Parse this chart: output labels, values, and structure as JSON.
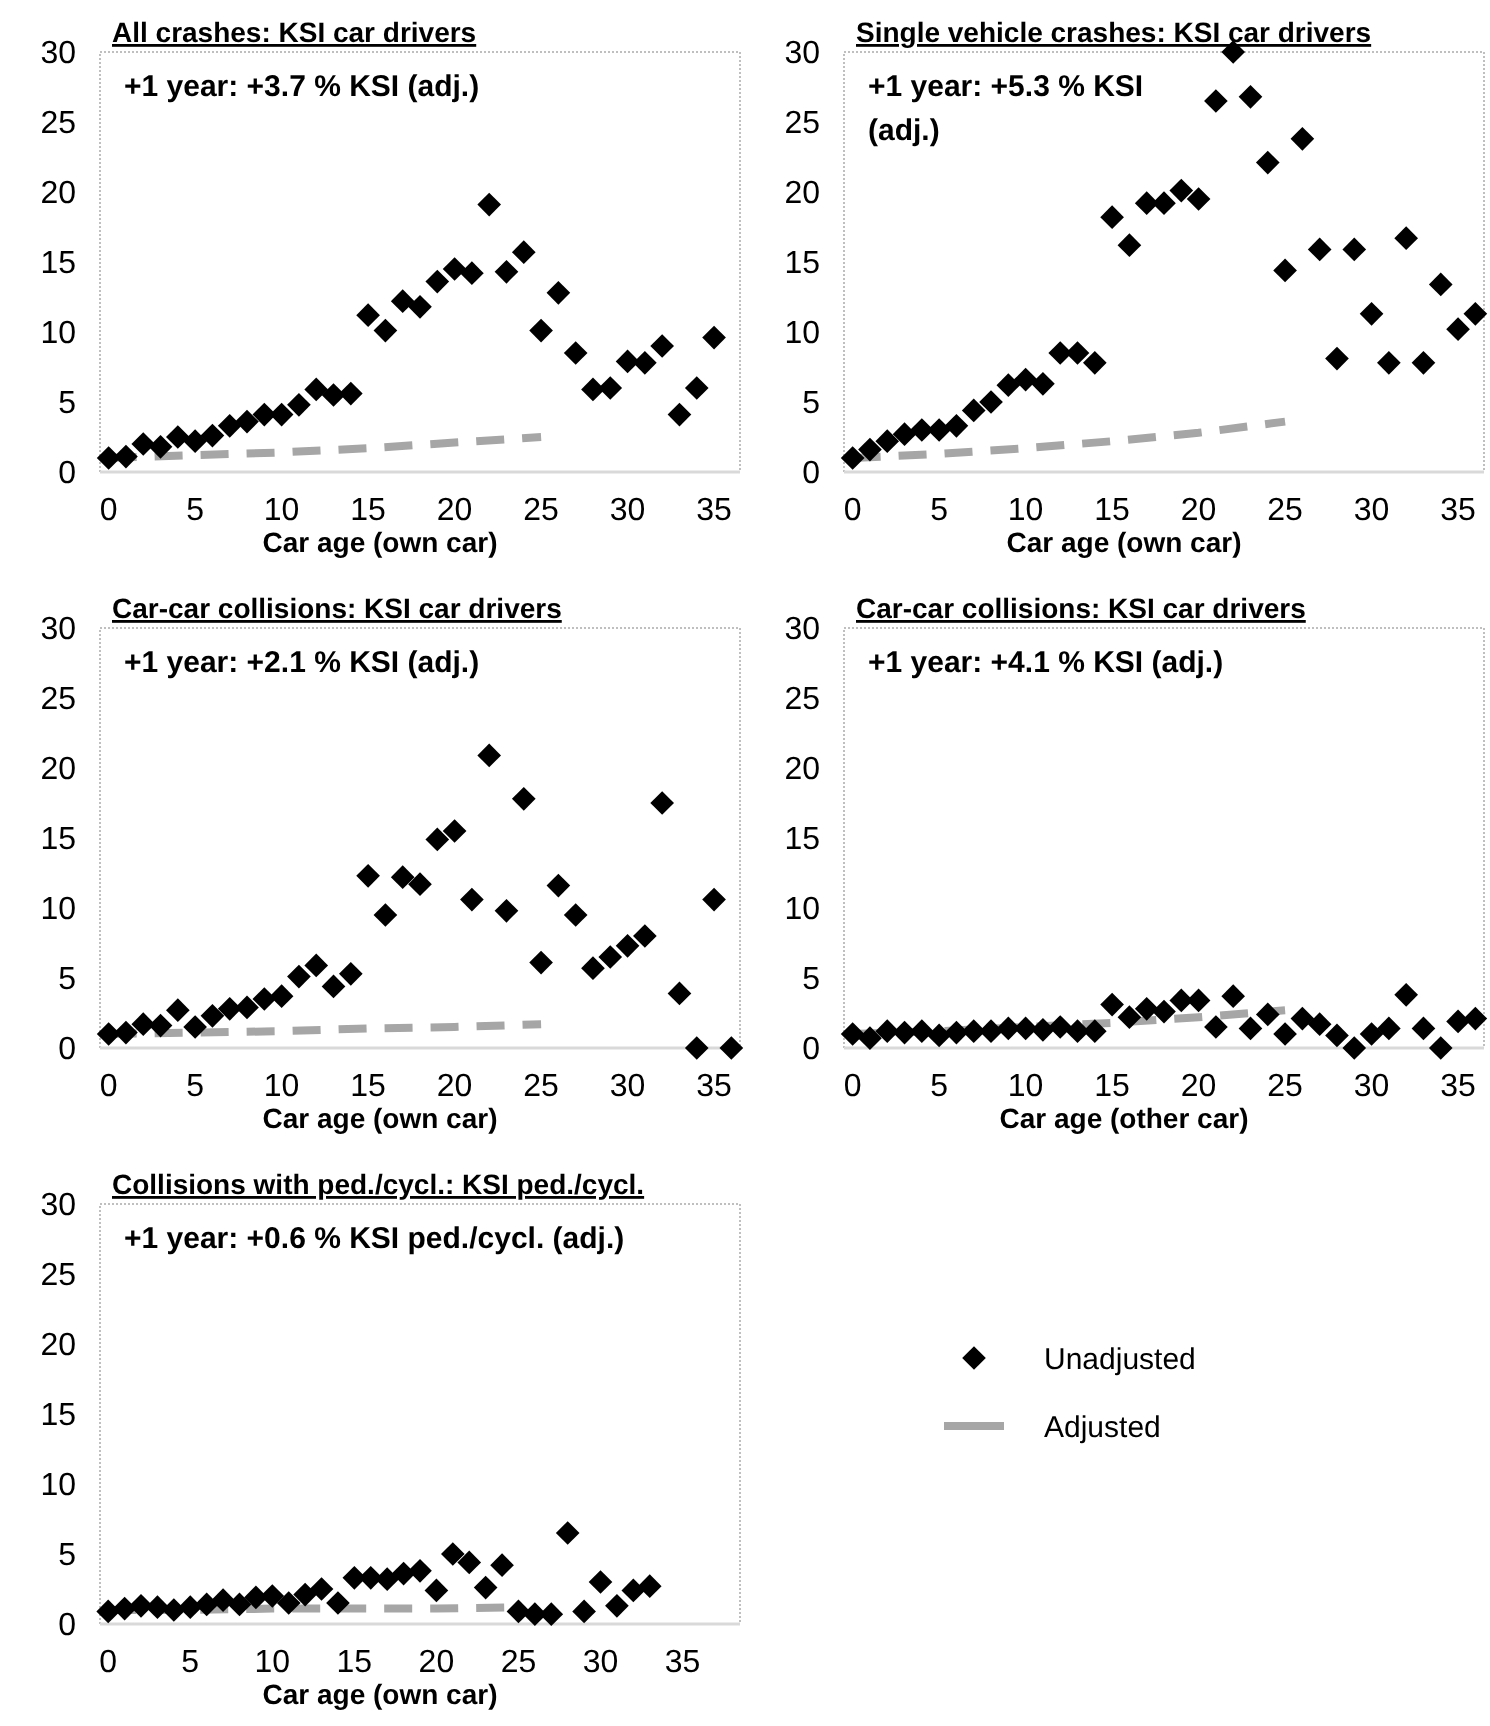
{
  "chart_data": [
    {
      "type": "scatter",
      "title": "All crashes: KSI car drivers",
      "xlabel": "Car age (own car)",
      "annotations": [
        "+1 year: +3.7 % KSI (adj.)"
      ],
      "xlim": [
        -0.5,
        36.5
      ],
      "xticks": [
        0,
        5,
        10,
        15,
        20,
        25,
        30,
        35
      ],
      "ylim": [
        0,
        30
      ],
      "yticks": [
        0,
        5,
        10,
        15,
        20,
        25,
        30
      ],
      "grid": false,
      "series": [
        {
          "type": "scatter",
          "color": "#000000",
          "marker": "diamond",
          "x": [
            0,
            1,
            2,
            3,
            4,
            5,
            6,
            7,
            8,
            9,
            10,
            11,
            12,
            13,
            14,
            15,
            16,
            17,
            18,
            19,
            20,
            21,
            22,
            23,
            24,
            25,
            26,
            27,
            28,
            29,
            30,
            31,
            32,
            33,
            34,
            35
          ],
          "values": [
            1.0,
            1.1,
            2.0,
            1.8,
            2.5,
            2.2,
            2.6,
            3.3,
            3.6,
            4.1,
            4.1,
            4.8,
            5.9,
            5.5,
            5.6,
            11.2,
            10.1,
            12.2,
            11.8,
            13.6,
            14.5,
            14.2,
            19.1,
            14.3,
            15.7,
            10.1,
            12.8,
            8.5,
            5.9,
            6.0,
            7.9,
            7.8,
            9.0,
            4.1,
            6.0,
            9.6
          ]
        },
        {
          "type": "line",
          "color": "#a6a6a6",
          "line_style": "dashed",
          "marker": "none",
          "x": [
            0,
            5,
            10,
            15,
            20,
            25
          ],
          "values": [
            1,
            1.2,
            1.4,
            1.7,
            2.1,
            2.5
          ]
        }
      ]
    },
    {
      "type": "scatter",
      "title": "Single vehicle crashes: KSI car drivers",
      "xlabel": "Car age (own car)",
      "annotations": [
        "+1 year: +5.3 % KSI (adj.)"
      ],
      "xlim": [
        -0.5,
        36.5
      ],
      "xticks": [
        0,
        5,
        10,
        15,
        20,
        25,
        30,
        35
      ],
      "ylim": [
        0,
        30
      ],
      "yticks": [
        0,
        5,
        10,
        15,
        20,
        25,
        30
      ],
      "grid": false,
      "series": [
        {
          "type": "scatter",
          "color": "#000000",
          "marker": "diamond",
          "x": [
            0,
            1,
            2,
            3,
            4,
            5,
            6,
            7,
            8,
            9,
            10,
            11,
            12,
            13,
            14,
            15,
            16,
            17,
            18,
            19,
            20,
            21,
            22,
            23,
            24,
            25,
            26,
            27,
            28,
            29,
            30,
            31,
            32,
            33,
            34,
            35,
            36
          ],
          "values": [
            1.0,
            1.6,
            2.2,
            2.7,
            3.0,
            3.0,
            3.3,
            4.4,
            5.0,
            6.2,
            6.6,
            6.3,
            8.5,
            8.5,
            7.8,
            18.2,
            16.2,
            19.2,
            19.2,
            20.1,
            19.5,
            26.5,
            30.0,
            26.8,
            22.1,
            14.4,
            23.8,
            15.9,
            8.1,
            15.9,
            11.3,
            7.8,
            16.7,
            7.8,
            13.4,
            10.2,
            11.3
          ]
        },
        {
          "type": "line",
          "color": "#a6a6a6",
          "line_style": "dashed",
          "marker": "none",
          "x": [
            0,
            5,
            10,
            15,
            20,
            25
          ],
          "values": [
            1,
            1.3,
            1.7,
            2.2,
            2.8,
            3.6
          ]
        }
      ]
    },
    {
      "type": "scatter",
      "title": "Car-car collisions: KSI car drivers",
      "xlabel": "Car age (own car)",
      "annotations": [
        "+1 year: +2.1 % KSI (adj.)"
      ],
      "xlim": [
        -0.5,
        36.5
      ],
      "xticks": [
        0,
        5,
        10,
        15,
        20,
        25,
        30,
        35
      ],
      "ylim": [
        0,
        30
      ],
      "yticks": [
        0,
        5,
        10,
        15,
        20,
        25,
        30
      ],
      "grid": false,
      "series": [
        {
          "type": "scatter",
          "color": "#000000",
          "marker": "diamond",
          "x": [
            0,
            1,
            2,
            3,
            4,
            5,
            6,
            7,
            8,
            9,
            10,
            11,
            12,
            13,
            14,
            15,
            16,
            17,
            18,
            19,
            20,
            21,
            22,
            23,
            24,
            25,
            26,
            27,
            28,
            29,
            30,
            31,
            32,
            33,
            34,
            35,
            36
          ],
          "values": [
            1.0,
            1.1,
            1.7,
            1.6,
            2.7,
            1.5,
            2.3,
            2.8,
            2.9,
            3.5,
            3.7,
            5.1,
            5.9,
            4.4,
            5.3,
            12.3,
            9.5,
            12.2,
            11.7,
            14.9,
            15.5,
            10.6,
            20.9,
            9.8,
            17.8,
            6.1,
            11.6,
            9.5,
            5.7,
            6.5,
            7.3,
            8.0,
            17.5,
            3.9,
            0,
            10.6,
            0
          ]
        },
        {
          "type": "line",
          "color": "#a6a6a6",
          "line_style": "dashed",
          "marker": "none",
          "x": [
            0,
            5,
            10,
            15,
            20,
            25
          ],
          "values": [
            1,
            1.1,
            1.2,
            1.4,
            1.5,
            1.7
          ]
        }
      ]
    },
    {
      "type": "scatter",
      "title": "Car-car collisions: KSI car drivers",
      "xlabel": "Car age (other car)",
      "annotations": [
        "+1 year: +4.1 % KSI (adj.)"
      ],
      "xlim": [
        -0.5,
        36.5
      ],
      "xticks": [
        0,
        5,
        10,
        15,
        20,
        25,
        30,
        35
      ],
      "ylim": [
        0,
        30
      ],
      "yticks": [
        0,
        5,
        10,
        15,
        20,
        25,
        30
      ],
      "grid": false,
      "series": [
        {
          "type": "scatter",
          "color": "#000000",
          "marker": "diamond",
          "x": [
            0,
            1,
            2,
            3,
            4,
            5,
            6,
            7,
            8,
            9,
            10,
            11,
            12,
            13,
            14,
            15,
            16,
            17,
            18,
            19,
            20,
            21,
            22,
            23,
            24,
            25,
            26,
            27,
            28,
            29,
            30,
            31,
            32,
            33,
            34,
            35,
            36
          ],
          "values": [
            1.0,
            0.7,
            1.2,
            1.1,
            1.2,
            0.9,
            1.1,
            1.2,
            1.2,
            1.4,
            1.4,
            1.3,
            1.5,
            1.2,
            1.2,
            3.1,
            2.2,
            2.8,
            2.6,
            3.4,
            3.4,
            1.5,
            3.7,
            1.4,
            2.4,
            1.0,
            2.1,
            1.7,
            0.9,
            0,
            1.0,
            1.4,
            3.8,
            1.4,
            0,
            1.9,
            2.1
          ]
        },
        {
          "type": "line",
          "color": "#a6a6a6",
          "line_style": "dashed",
          "marker": "none",
          "x": [
            0,
            5,
            10,
            15,
            20,
            25
          ],
          "values": [
            1,
            1.2,
            1.5,
            1.8,
            2.2,
            2.7
          ]
        }
      ]
    },
    {
      "type": "scatter",
      "title": "Collisions with ped./cycl.: KSI ped./cycl.",
      "xlabel": "Car age (own car)",
      "annotations": [
        "+1 year: +0.6 % KSI ped./cycl. (adj.)"
      ],
      "xlim": [
        -0.5,
        38.5
      ],
      "xticks": [
        0,
        5,
        10,
        15,
        20,
        25,
        30,
        35
      ],
      "ylim": [
        0,
        30
      ],
      "yticks": [
        0,
        5,
        10,
        15,
        20,
        25,
        30
      ],
      "grid": false,
      "legend": "right",
      "series": [
        {
          "name": "Unadjusted",
          "type": "scatter",
          "color": "#000000",
          "marker": "diamond",
          "x": [
            0,
            1,
            2,
            3,
            4,
            5,
            6,
            7,
            8,
            9,
            10,
            11,
            12,
            13,
            14,
            15,
            16,
            17,
            18,
            19,
            20,
            21,
            22,
            23,
            24,
            25,
            26,
            27,
            28,
            29,
            30,
            31,
            32,
            33
          ],
          "values": [
            0.9,
            1.1,
            1.3,
            1.2,
            1.0,
            1.2,
            1.4,
            1.7,
            1.4,
            1.9,
            2.0,
            1.5,
            2.1,
            2.5,
            1.5,
            3.3,
            3.3,
            3.2,
            3.6,
            3.8,
            2.4,
            5.0,
            4.4,
            2.6,
            4.2,
            0.9,
            0.7,
            0.7,
            6.5,
            0.9,
            3.0,
            1.3,
            2.4,
            2.7
          ]
        },
        {
          "name": "Adjusted",
          "type": "line",
          "color": "#a6a6a6",
          "line_style": "dashed",
          "marker": "none",
          "x": [
            0,
            5,
            10,
            15,
            20,
            25
          ],
          "values": [
            1,
            1.0,
            1.1,
            1.1,
            1.1,
            1.2
          ]
        }
      ]
    }
  ]
}
